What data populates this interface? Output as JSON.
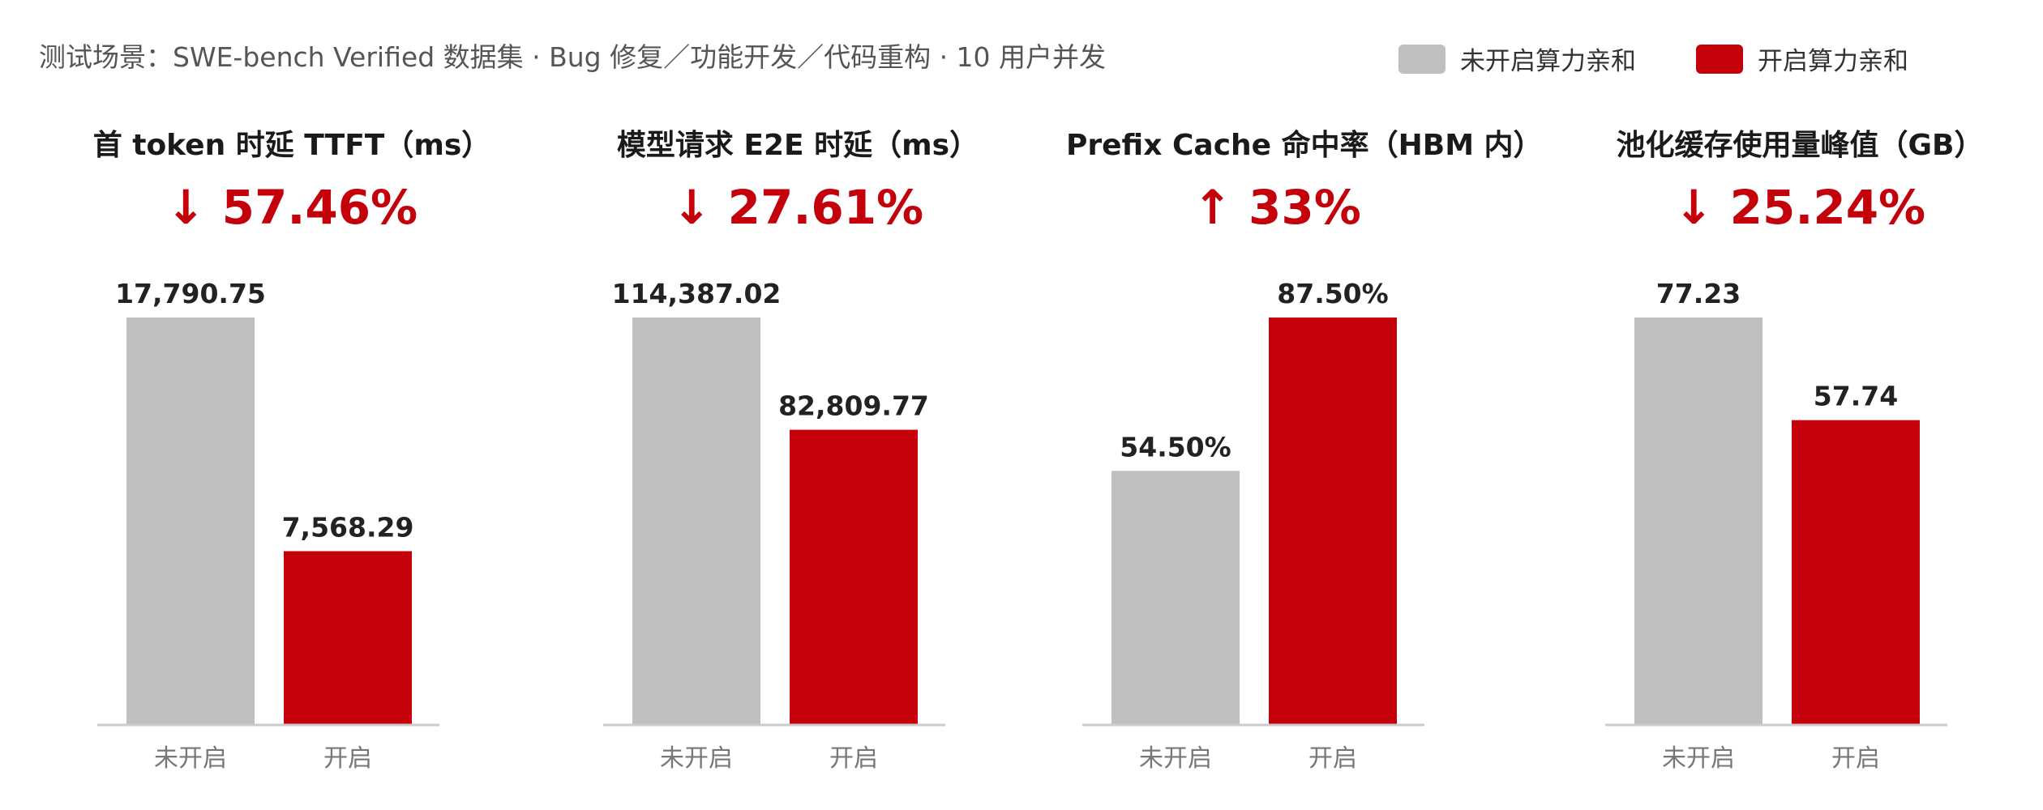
{
  "subtitle": "测试场景：SWE-bench Verified 数据集 · Bug 修复／功能开发／代码重构 · 10 用户并发",
  "legend": [
    {
      "label": "未开启算力亲和",
      "color": "#bfbfbf"
    },
    {
      "label": "开启算力亲和",
      "color": "#c4000b"
    }
  ],
  "chart_data": [
    {
      "type": "bar",
      "title": "首 token 时延 TTFT（ms）",
      "change": "↓ 57.46%",
      "categories": [
        "未开启",
        "开启"
      ],
      "values": [
        17790.75,
        7568.29
      ],
      "value_labels": [
        "17,790.75",
        "7,568.29"
      ],
      "colors": [
        "#bfbfbf",
        "#c4000b"
      ],
      "ylim": [
        0,
        17790.75
      ],
      "grid": false
    },
    {
      "type": "bar",
      "title": "模型请求 E2E 时延（ms）",
      "change": "↓ 27.61%",
      "categories": [
        "未开启",
        "开启"
      ],
      "values": [
        114387.02,
        82809.77
      ],
      "value_labels": [
        "114,387.02",
        "82,809.77"
      ],
      "colors": [
        "#bfbfbf",
        "#c4000b"
      ],
      "ylim": [
        0,
        114387.02
      ],
      "grid": false
    },
    {
      "type": "bar",
      "title": "Prefix Cache 命中率（HBM 内）",
      "change": "↑ 33%",
      "categories": [
        "未开启",
        "开启"
      ],
      "values": [
        54.5,
        87.5
      ],
      "value_labels": [
        "54.50%",
        "87.50%"
      ],
      "colors": [
        "#bfbfbf",
        "#c4000b"
      ],
      "ylim": [
        0,
        87.5
      ],
      "grid": false
    },
    {
      "type": "bar",
      "title": "池化缓存使用量峰值（GB）",
      "change": "↓ 25.24%",
      "categories": [
        "未开启",
        "开启"
      ],
      "values": [
        77.23,
        57.74
      ],
      "value_labels": [
        "77.23",
        "57.74"
      ],
      "colors": [
        "#bfbfbf",
        "#c4000b"
      ],
      "ylim": [
        0,
        77.23
      ],
      "grid": false
    }
  ]
}
